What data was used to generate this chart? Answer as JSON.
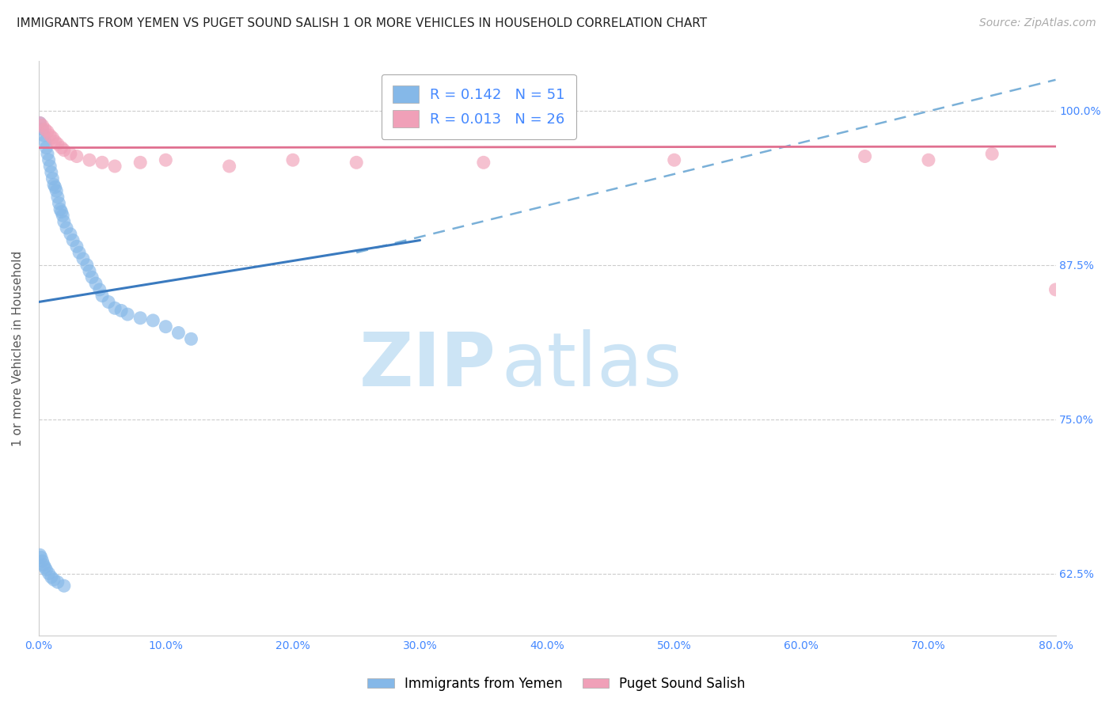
{
  "title": "IMMIGRANTS FROM YEMEN VS PUGET SOUND SALISH 1 OR MORE VEHICLES IN HOUSEHOLD CORRELATION CHART",
  "source": "Source: ZipAtlas.com",
  "ylabel": "1 or more Vehicles in Household",
  "xlim": [
    0.0,
    0.8
  ],
  "ylim": [
    0.575,
    1.04
  ],
  "xticks": [
    0.0,
    0.1,
    0.2,
    0.3,
    0.4,
    0.5,
    0.6,
    0.7,
    0.8
  ],
  "xticklabels": [
    "0.0%",
    "10.0%",
    "20.0%",
    "30.0%",
    "40.0%",
    "50.0%",
    "60.0%",
    "70.0%",
    "80.0%"
  ],
  "yticks": [
    0.625,
    0.75,
    0.875,
    1.0
  ],
  "yticklabels": [
    "62.5%",
    "75.0%",
    "87.5%",
    "100.0%"
  ],
  "blue_color": "#85b8e8",
  "pink_color": "#f0a0b8",
  "blue_R": 0.142,
  "blue_N": 51,
  "pink_R": 0.013,
  "pink_N": 26,
  "blue_scatter_x": [
    0.001,
    0.003,
    0.004,
    0.005,
    0.006,
    0.007,
    0.008,
    0.009,
    0.01,
    0.011,
    0.012,
    0.013,
    0.014,
    0.015,
    0.016,
    0.017,
    0.018,
    0.019,
    0.02,
    0.022,
    0.025,
    0.027,
    0.03,
    0.032,
    0.035,
    0.038,
    0.04,
    0.042,
    0.045,
    0.048,
    0.05,
    0.055,
    0.06,
    0.065,
    0.07,
    0.08,
    0.09,
    0.1,
    0.11,
    0.12,
    0.001,
    0.002,
    0.003,
    0.004,
    0.005,
    0.006,
    0.008,
    0.01,
    0.012,
    0.015,
    0.02
  ],
  "blue_scatter_y": [
    0.99,
    0.985,
    0.98,
    0.975,
    0.97,
    0.965,
    0.96,
    0.955,
    0.95,
    0.945,
    0.94,
    0.938,
    0.935,
    0.93,
    0.925,
    0.92,
    0.918,
    0.915,
    0.91,
    0.905,
    0.9,
    0.895,
    0.89,
    0.885,
    0.88,
    0.875,
    0.87,
    0.865,
    0.86,
    0.855,
    0.85,
    0.845,
    0.84,
    0.838,
    0.835,
    0.832,
    0.83,
    0.825,
    0.82,
    0.815,
    0.64,
    0.638,
    0.635,
    0.632,
    0.63,
    0.628,
    0.625,
    0.622,
    0.62,
    0.618,
    0.615
  ],
  "pink_scatter_x": [
    0.001,
    0.003,
    0.005,
    0.007,
    0.009,
    0.011,
    0.013,
    0.015,
    0.018,
    0.02,
    0.025,
    0.03,
    0.04,
    0.05,
    0.06,
    0.08,
    0.1,
    0.15,
    0.2,
    0.25,
    0.35,
    0.5,
    0.65,
    0.7,
    0.75,
    0.8
  ],
  "pink_scatter_y": [
    0.99,
    0.988,
    0.985,
    0.983,
    0.98,
    0.978,
    0.975,
    0.973,
    0.97,
    0.968,
    0.965,
    0.963,
    0.96,
    0.958,
    0.955,
    0.958,
    0.96,
    0.955,
    0.96,
    0.958,
    0.958,
    0.96,
    0.963,
    0.96,
    0.965,
    0.855
  ],
  "blue_solid_line_x": [
    0.0,
    0.3
  ],
  "blue_solid_line_y": [
    0.845,
    0.895
  ],
  "blue_dashed_line_x": [
    0.25,
    0.8
  ],
  "blue_dashed_line_y": [
    0.885,
    1.025
  ],
  "pink_line_x": [
    0.0,
    0.8
  ],
  "pink_line_y": [
    0.97,
    0.971
  ],
  "watermark_zip": "ZIP",
  "watermark_atlas": "atlas",
  "watermark_color": "#cce4f5",
  "background_color": "#ffffff",
  "grid_color": "#cccccc",
  "tick_color": "#4488ff",
  "title_fontsize": 11,
  "source_fontsize": 10,
  "axis_label_fontsize": 11,
  "tick_fontsize": 10,
  "legend_fontsize": 13
}
